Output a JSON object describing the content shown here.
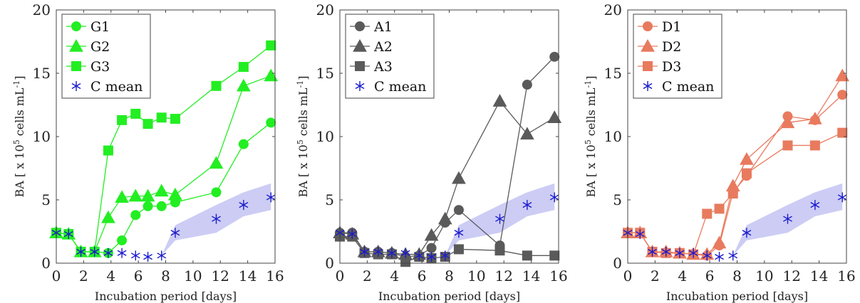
{
  "chart_data": [
    {
      "type": "line",
      "title": "",
      "xlabel": "Incubation period [days]",
      "ylabel": "BA [ x 10^5 cells mL^-1]",
      "ylabel_parts": {
        "pre": "BA [ x 10",
        "exp1": "5",
        "mid": " cells mL",
        "exp2": "-1",
        "post": "]"
      },
      "xlim": [
        0,
        16
      ],
      "ylim": [
        0,
        20
      ],
      "xticks": [
        0,
        2,
        4,
        6,
        8,
        10,
        12,
        14,
        16
      ],
      "yticks": [
        0,
        5,
        10,
        15,
        20
      ],
      "legend_position": "top-left",
      "color": "#22ee22",
      "series": [
        {
          "name": "G1",
          "marker": "circle",
          "x": [
            0,
            0.9,
            1.8,
            2.8,
            3.8,
            4.8,
            5.8,
            6.7,
            7.7,
            8.7,
            11.7,
            13.7,
            15.7
          ],
          "y": [
            2.4,
            2.3,
            0.9,
            0.9,
            0.8,
            1.8,
            3.8,
            4.5,
            4.5,
            4.8,
            5.6,
            9.4,
            11.1
          ]
        },
        {
          "name": "G2",
          "marker": "triangle",
          "x": [
            0,
            0.9,
            1.8,
            2.8,
            3.8,
            4.8,
            5.8,
            6.7,
            7.7,
            8.7,
            11.7,
            13.7,
            15.7
          ],
          "y": [
            2.4,
            2.3,
            0.9,
            0.9,
            3.6,
            5.2,
            5.3,
            5.3,
            5.7,
            5.4,
            7.9,
            14.0,
            14.8
          ]
        },
        {
          "name": "G3",
          "marker": "square",
          "x": [
            0,
            0.9,
            1.8,
            2.8,
            3.8,
            4.8,
            5.8,
            6.7,
            7.7,
            8.7,
            11.7,
            13.7,
            15.7
          ],
          "y": [
            2.4,
            2.3,
            0.9,
            0.9,
            8.9,
            11.3,
            11.8,
            11.0,
            11.5,
            11.4,
            14.0,
            15.5,
            17.2
          ]
        }
      ],
      "mean": {
        "name": "C mean",
        "marker": "asterisk",
        "color": "#1a1acc",
        "x": [
          0,
          0.9,
          1.8,
          2.8,
          3.8,
          4.8,
          5.8,
          6.7,
          7.7,
          8.7,
          11.7,
          13.7,
          15.7
        ],
        "y": [
          2.4,
          2.3,
          0.9,
          0.9,
          0.8,
          0.8,
          0.6,
          0.5,
          0.6,
          2.4,
          3.5,
          4.6,
          5.2
        ]
      },
      "band": {
        "color": "#ccccf5",
        "x": [
          7.7,
          8.7,
          11.7,
          13.7,
          15.7
        ],
        "lower": [
          0.6,
          1.8,
          2.4,
          3.7,
          4.2
        ],
        "upper": [
          0.6,
          3.0,
          4.6,
          5.6,
          6.3
        ]
      }
    },
    {
      "type": "line",
      "title": "",
      "xlabel": "Incubation period [days]",
      "ylabel": "BA [ x 10^5 cells mL^-1]",
      "ylabel_parts": {
        "pre": "BA [ x 10",
        "exp1": "5",
        "mid": " cells mL",
        "exp2": "-1",
        "post": "]"
      },
      "xlim": [
        0,
        16
      ],
      "ylim": [
        0,
        20
      ],
      "xticks": [
        0,
        2,
        4,
        6,
        8,
        10,
        12,
        14,
        16
      ],
      "yticks": [
        0,
        5,
        10,
        15,
        20
      ],
      "legend_position": "top-left",
      "color": "#5a5a5a",
      "series": [
        {
          "name": "A1",
          "marker": "circle",
          "x": [
            0,
            0.9,
            1.8,
            2.8,
            3.8,
            4.8,
            5.8,
            6.7,
            7.7,
            8.7,
            11.7,
            13.7,
            15.7
          ],
          "y": [
            2.4,
            2.4,
            0.9,
            0.9,
            0.8,
            0.5,
            0.6,
            1.2,
            3.2,
            4.2,
            1.4,
            14.1,
            16.3
          ]
        },
        {
          "name": "A2",
          "marker": "triangle",
          "x": [
            0,
            0.9,
            1.8,
            2.8,
            3.8,
            4.8,
            5.8,
            6.7,
            7.7,
            8.7,
            11.7,
            13.7,
            15.7
          ],
          "y": [
            2.4,
            2.3,
            0.9,
            0.9,
            0.8,
            0.7,
            0.7,
            2.2,
            3.5,
            6.7,
            12.8,
            10.2,
            11.5
          ]
        },
        {
          "name": "A3",
          "marker": "square",
          "x": [
            0,
            0.9,
            1.8,
            2.8,
            3.8,
            4.8,
            5.8,
            6.7,
            7.7,
            8.7,
            11.7,
            13.7,
            15.7
          ],
          "y": [
            2.1,
            2.1,
            0.8,
            0.7,
            0.7,
            0.1,
            0.5,
            0.4,
            0.5,
            1.1,
            1.0,
            0.6,
            0.6
          ]
        }
      ],
      "mean": {
        "name": "C mean",
        "marker": "asterisk",
        "color": "#1a1acc",
        "x": [
          0,
          0.9,
          1.8,
          2.8,
          3.8,
          4.8,
          5.8,
          6.7,
          7.7,
          8.7,
          11.7,
          13.7,
          15.7
        ],
        "y": [
          2.4,
          2.3,
          0.9,
          0.9,
          0.8,
          0.8,
          0.6,
          0.5,
          0.6,
          2.4,
          3.5,
          4.6,
          5.2
        ]
      },
      "band": {
        "color": "#ccccf5",
        "x": [
          7.7,
          8.7,
          11.7,
          13.7,
          15.7
        ],
        "lower": [
          0.6,
          1.8,
          2.4,
          3.7,
          4.2
        ],
        "upper": [
          0.6,
          3.0,
          4.6,
          5.6,
          6.3
        ]
      }
    },
    {
      "type": "line",
      "title": "",
      "xlabel": "Incubation period [days]",
      "ylabel": "BA [ x 10^5 cells mL^-1]",
      "ylabel_parts": {
        "pre": "BA [ x 10",
        "exp1": "5",
        "mid": " cells mL",
        "exp2": "-1",
        "post": "]"
      },
      "xlim": [
        0,
        16
      ],
      "ylim": [
        0,
        20
      ],
      "xticks": [
        0,
        2,
        4,
        6,
        8,
        10,
        12,
        14,
        16
      ],
      "yticks": [
        0,
        5,
        10,
        15,
        20
      ],
      "legend_position": "top-left",
      "color": "#e87a5e",
      "series": [
        {
          "name": "D1",
          "marker": "circle",
          "x": [
            0,
            0.9,
            1.8,
            2.8,
            3.8,
            4.8,
            5.8,
            6.7,
            7.7,
            8.7,
            11.7,
            13.7,
            15.7
          ],
          "y": [
            2.4,
            2.4,
            0.9,
            0.8,
            0.8,
            0.7,
            0.6,
            1.4,
            5.6,
            6.9,
            11.6,
            11.3,
            13.3
          ]
        },
        {
          "name": "D2",
          "marker": "triangle",
          "x": [
            0,
            0.9,
            1.8,
            2.8,
            3.8,
            4.8,
            5.8,
            6.7,
            7.7,
            8.7,
            11.7,
            13.7,
            15.7
          ],
          "y": [
            2.4,
            2.4,
            0.9,
            0.9,
            0.8,
            0.7,
            0.7,
            1.6,
            6.1,
            8.2,
            11.1,
            11.4,
            14.8
          ]
        },
        {
          "name": "D3",
          "marker": "square",
          "x": [
            0,
            0.9,
            1.8,
            2.8,
            3.8,
            4.8,
            5.8,
            6.7,
            7.7,
            8.7,
            11.7,
            13.7,
            15.7
          ],
          "y": [
            2.4,
            2.4,
            0.9,
            0.8,
            0.8,
            0.7,
            3.9,
            4.3,
            5.5,
            7.1,
            9.3,
            9.3,
            10.3
          ]
        }
      ],
      "mean": {
        "name": "C mean",
        "marker": "asterisk",
        "color": "#1a1acc",
        "x": [
          0,
          0.9,
          1.8,
          2.8,
          3.8,
          4.8,
          5.8,
          6.7,
          7.7,
          8.7,
          11.7,
          13.7,
          15.7
        ],
        "y": [
          2.4,
          2.3,
          0.9,
          0.9,
          0.8,
          0.8,
          0.6,
          0.5,
          0.6,
          2.4,
          3.5,
          4.6,
          5.2
        ]
      },
      "band": {
        "color": "#ccccf5",
        "x": [
          7.7,
          8.7,
          11.7,
          13.7,
          15.7
        ],
        "lower": [
          0.6,
          1.8,
          2.4,
          3.7,
          4.2
        ],
        "upper": [
          0.6,
          3.0,
          4.6,
          5.6,
          6.3
        ]
      }
    }
  ]
}
